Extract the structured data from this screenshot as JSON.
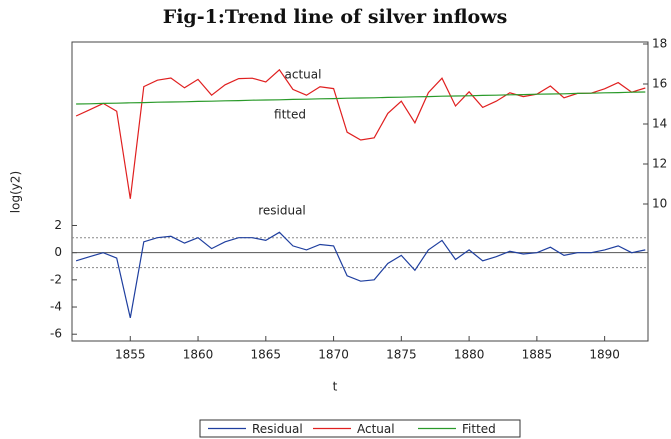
{
  "chart_data": {
    "type": "line",
    "title": "Fig-1:Trend line of silver inflows",
    "x_label": "t",
    "y_label": "log(y2)",
    "x": [
      1851,
      1852,
      1853,
      1854,
      1855,
      1856,
      1857,
      1858,
      1859,
      1860,
      1861,
      1862,
      1863,
      1864,
      1865,
      1866,
      1867,
      1868,
      1869,
      1870,
      1871,
      1872,
      1873,
      1874,
      1875,
      1876,
      1877,
      1878,
      1879,
      1880,
      1881,
      1882,
      1883,
      1884,
      1885,
      1886,
      1887,
      1888,
      1889,
      1890,
      1891,
      1892,
      1893
    ],
    "xlim": [
      1850.7,
      1893.2
    ],
    "xticks": [
      1855,
      1860,
      1865,
      1870,
      1875,
      1880,
      1885,
      1890
    ],
    "ylim": [
      -6.5,
      15.5
    ],
    "yticks": [
      -6,
      -4,
      -2,
      0,
      2
    ],
    "y2lim": [
      3.15,
      18.1
    ],
    "y2ticks": [
      10,
      12,
      14,
      16,
      18
    ],
    "residual_bands": [
      -1.1,
      1.1
    ],
    "legend": "bottom",
    "series": [
      {
        "name": "Residual",
        "color": "#1f3f9f",
        "axis": "y",
        "values": [
          -0.6,
          -0.3,
          0,
          -0.4,
          -4.8,
          0.8,
          1.1,
          1.2,
          0.7,
          1.1,
          0.3,
          0.8,
          1.1,
          1.1,
          0.9,
          1.5,
          0.5,
          0.2,
          0.6,
          0.5,
          -1.7,
          -2.1,
          -2.0,
          -0.8,
          -0.2,
          -1.3,
          0.2,
          0.9,
          -0.5,
          0.2,
          -0.6,
          -0.3,
          0.1,
          -0.1,
          0,
          0.4,
          -0.2,
          0,
          0,
          0.2,
          0.5,
          0,
          0.2
        ]
      },
      {
        "name": "Actual",
        "color": "#e02020",
        "axis": "y2",
        "values": [
          14.4,
          14.71,
          15.03,
          14.64,
          10.26,
          15.87,
          16.19,
          16.3,
          15.81,
          16.23,
          15.44,
          15.96,
          16.27,
          16.29,
          16.1,
          16.71,
          15.73,
          15.44,
          15.86,
          15.77,
          13.59,
          13.2,
          13.31,
          14.53,
          15.14,
          14.06,
          15.57,
          16.29,
          14.9,
          15.61,
          14.83,
          15.14,
          15.56,
          15.37,
          15.49,
          15.9,
          15.31,
          15.53,
          15.54,
          15.76,
          16.07,
          15.59,
          15.8
        ]
      },
      {
        "name": "Fitted",
        "color": "#2a9a2a",
        "axis": "y2",
        "values": [
          15.0,
          15.01,
          15.03,
          15.04,
          15.06,
          15.07,
          15.09,
          15.1,
          15.11,
          15.13,
          15.14,
          15.16,
          15.17,
          15.19,
          15.2,
          15.21,
          15.23,
          15.24,
          15.26,
          15.27,
          15.29,
          15.3,
          15.31,
          15.33,
          15.34,
          15.36,
          15.37,
          15.39,
          15.4,
          15.41,
          15.43,
          15.44,
          15.46,
          15.47,
          15.49,
          15.5,
          15.51,
          15.53,
          15.54,
          15.56,
          15.57,
          15.59,
          15.6
        ]
      }
    ],
    "annotations": [
      "actual",
      "fitted",
      "residual"
    ]
  }
}
